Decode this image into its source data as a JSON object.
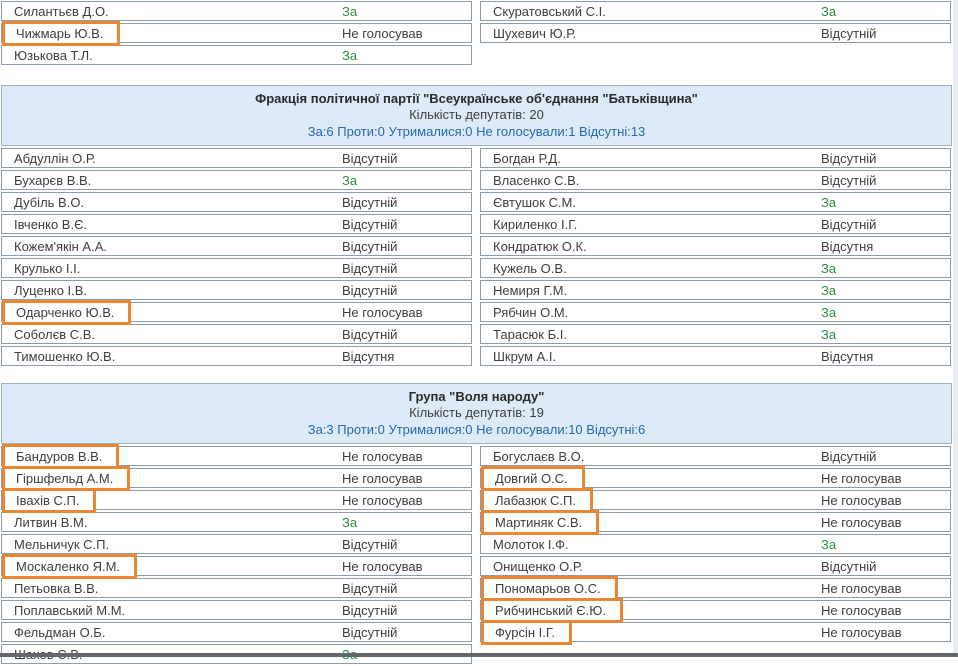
{
  "page": {
    "highlight_color": "#ea8634",
    "vote_for_color": "#2e8b44",
    "header_bg_color": "#dcebf7",
    "stats_text_color": "#2867ae"
  },
  "sections": [
    {
      "type": "list-partial",
      "columns": {
        "left": [
          {
            "name": "Силантьєв Д.О.",
            "vote": "За",
            "highlight": false
          },
          {
            "name": "Чижмарь Ю.В.",
            "vote": "Не голосував",
            "highlight": true
          },
          {
            "name": "Юзькова Т.Л.",
            "vote": "За",
            "highlight": false
          }
        ],
        "right": [
          {
            "name": "Скуратовський С.І.",
            "vote": "За",
            "highlight": false
          },
          {
            "name": "Шухевич Ю.Р.",
            "vote": "Відсутній",
            "highlight": false
          }
        ]
      }
    },
    {
      "type": "faction",
      "header": {
        "title": "Фракція політичної партії \"Всеукраїнське об'єднання \"Батьківщина\"",
        "count_label": "Кількість депутатів: 20",
        "stats": "За:6 Проти:0 Утрималися:0 Не голосували:1 Відсутні:13"
      },
      "columns": {
        "left": [
          {
            "name": "Абдуллін О.Р.",
            "vote": "Відсутній",
            "highlight": false
          },
          {
            "name": "Бухарєв В.В.",
            "vote": "За",
            "highlight": false
          },
          {
            "name": "Дубіль В.О.",
            "vote": "Відсутній",
            "highlight": false
          },
          {
            "name": "Івченко В.Є.",
            "vote": "Відсутній",
            "highlight": false
          },
          {
            "name": "Кожем'якін А.А.",
            "vote": "Відсутній",
            "highlight": false
          },
          {
            "name": "Крулько І.І.",
            "vote": "Відсутній",
            "highlight": false
          },
          {
            "name": "Луценко І.В.",
            "vote": "Відсутній",
            "highlight": false
          },
          {
            "name": "Одарченко Ю.В.",
            "vote": "Не голосував",
            "highlight": true
          },
          {
            "name": "Соболєв С.В.",
            "vote": "Відсутній",
            "highlight": false
          },
          {
            "name": "Тимошенко Ю.В.",
            "vote": "Відсутня",
            "highlight": false
          }
        ],
        "right": [
          {
            "name": "Богдан Р.Д.",
            "vote": "Відсутній",
            "highlight": false
          },
          {
            "name": "Власенко С.В.",
            "vote": "Відсутній",
            "highlight": false
          },
          {
            "name": "Євтушок С.М.",
            "vote": "За",
            "highlight": false
          },
          {
            "name": "Кириленко І.Г.",
            "vote": "Відсутній",
            "highlight": false
          },
          {
            "name": "Кондратюк О.К.",
            "vote": "Відсутня",
            "highlight": false
          },
          {
            "name": "Кужель О.В.",
            "vote": "За",
            "highlight": false
          },
          {
            "name": "Немиря Г.М.",
            "vote": "За",
            "highlight": false
          },
          {
            "name": "Рябчин О.М.",
            "vote": "За",
            "highlight": false
          },
          {
            "name": "Тарасюк Б.І.",
            "vote": "За",
            "highlight": false
          },
          {
            "name": "Шкрум А.І.",
            "vote": "Відсутня",
            "highlight": false
          }
        ]
      }
    },
    {
      "type": "faction",
      "header": {
        "title": "Група \"Воля народу\"",
        "count_label": "Кількість депутатів: 19",
        "stats": "За:3 Проти:0 Утрималися:0 Не голосували:10 Відсутні:6"
      },
      "columns": {
        "left": [
          {
            "name": "Бандуров В.В.",
            "vote": "Не голосував",
            "highlight": true
          },
          {
            "name": "Гіршфельд А.М.",
            "vote": "Не голосував",
            "highlight": true
          },
          {
            "name": "Івахів С.П.",
            "vote": "Не голосував",
            "highlight": true
          },
          {
            "name": "Литвин В.М.",
            "vote": "За",
            "highlight": false
          },
          {
            "name": "Мельничук С.П.",
            "vote": "Відсутній",
            "highlight": false
          },
          {
            "name": "Москаленко Я.М.",
            "vote": "Не голосував",
            "highlight": true
          },
          {
            "name": "Петьовка В.В.",
            "vote": "Відсутній",
            "highlight": false
          },
          {
            "name": "Поплавський М.М.",
            "vote": "Відсутній",
            "highlight": false
          },
          {
            "name": "Фельдман О.Б.",
            "vote": "Відсутній",
            "highlight": false
          },
          {
            "name": "Шахов С.В.",
            "vote": "За",
            "highlight": false
          }
        ],
        "right": [
          {
            "name": "Богуслаєв В.О.",
            "vote": "Відсутній",
            "highlight": false
          },
          {
            "name": "Довгий О.С.",
            "vote": "Не голосував",
            "highlight": true
          },
          {
            "name": "Лабазюк С.П.",
            "vote": "Не голосував",
            "highlight": true
          },
          {
            "name": "Мартиняк С.В.",
            "vote": "Не голосував",
            "highlight": true
          },
          {
            "name": "Молоток І.Ф.",
            "vote": "За",
            "highlight": false
          },
          {
            "name": "Онищенко О.Р.",
            "vote": "Відсутній",
            "highlight": false
          },
          {
            "name": "Пономарьов О.С.",
            "vote": "Не голосував",
            "highlight": true
          },
          {
            "name": "Рибчинський Є.Ю.",
            "vote": "Не голосував",
            "highlight": true
          },
          {
            "name": "Фурсін І.Г.",
            "vote": "Не голосував",
            "highlight": true
          }
        ]
      }
    }
  ]
}
